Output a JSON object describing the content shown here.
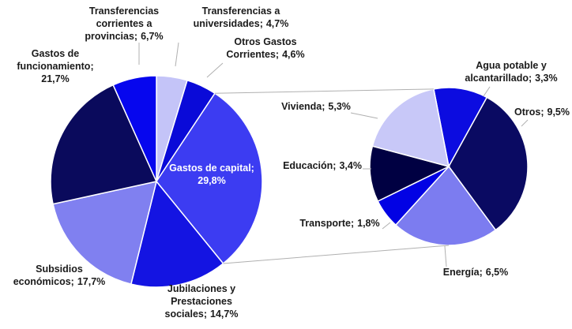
{
  "chart_data": [
    {
      "type": "pie",
      "categories": [
        [
          "Transferencias a",
          "universidades;"
        ],
        [
          "Otros Gastos",
          "Corrientes;"
        ],
        [
          "Gastos de capital;"
        ],
        [
          "Jubilaciones y",
          "Prestaciones",
          "sociales;"
        ],
        [
          "Subsidios",
          "económicos;"
        ],
        [
          "Gastos de",
          "funcionamiento;"
        ],
        [
          "Transferencias",
          "corrientes a",
          "provincias;"
        ]
      ],
      "values": [
        4.7,
        4.6,
        29.8,
        14.7,
        17.7,
        21.7,
        6.7
      ],
      "value_labels": [
        "4,7%",
        "4,6%",
        "29,8%",
        "14,7%",
        "17,7%",
        "21,7%",
        "6,7%"
      ],
      "colors": [
        "#c4c4f8",
        "#0a0ad8",
        "#3c3cf2",
        "#1414e2",
        "#8080f0",
        "#0a0a5c",
        "#0606ee"
      ]
    },
    {
      "type": "pie",
      "categories": [
        [
          "Agua potable y",
          "alcantarillado;"
        ],
        [
          "Otros;"
        ],
        [
          "Energía;"
        ],
        [
          "Transporte;"
        ],
        [
          "Educación;"
        ],
        [
          "Vivienda;"
        ]
      ],
      "values": [
        3.3,
        9.5,
        6.5,
        1.8,
        3.4,
        5.3
      ],
      "value_labels": [
        "3,3%",
        "9,5%",
        "6,5%",
        "1,8%",
        "3,4%",
        "5,3%"
      ],
      "colors": [
        "#0c0ce0",
        "#0a0a62",
        "#7c7cf0",
        "#0202e4",
        "#000042",
        "#c8c8f8"
      ]
    }
  ]
}
